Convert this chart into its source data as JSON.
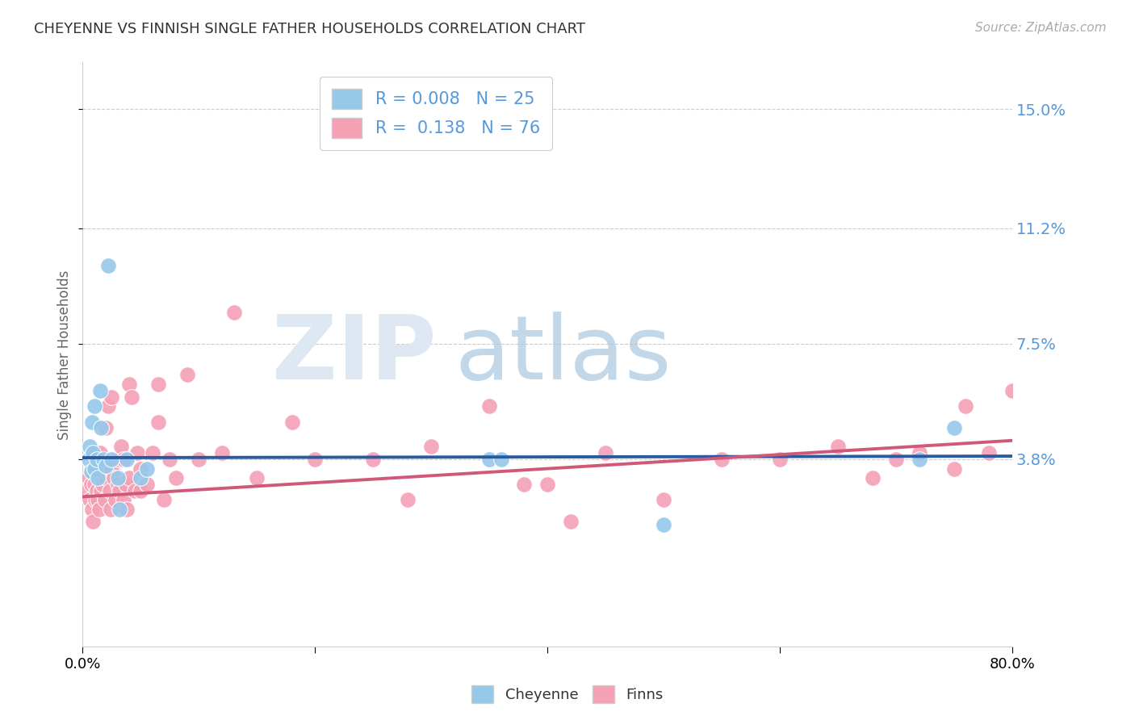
{
  "title": "CHEYENNE VS FINNISH SINGLE FATHER HOUSEHOLDS CORRELATION CHART",
  "source": "Source: ZipAtlas.com",
  "ylabel": "Single Father Households",
  "ytick_labels": [
    "3.8%",
    "7.5%",
    "11.2%",
    "15.0%"
  ],
  "ytick_values": [
    0.038,
    0.075,
    0.112,
    0.15
  ],
  "xlim": [
    0.0,
    0.8
  ],
  "ylim": [
    -0.022,
    0.165
  ],
  "cheyenne_color": "#96c8ea",
  "finns_color": "#f4a0b5",
  "cheyenne_line_color": "#2a5aa0",
  "finns_line_color": "#d05878",
  "cheyenne_x": [
    0.005,
    0.006,
    0.007,
    0.008,
    0.009,
    0.01,
    0.01,
    0.012,
    0.013,
    0.015,
    0.016,
    0.018,
    0.02,
    0.022,
    0.025,
    0.03,
    0.032,
    0.038,
    0.05,
    0.055,
    0.35,
    0.36,
    0.72,
    0.75,
    0.5
  ],
  "cheyenne_y": [
    0.038,
    0.042,
    0.034,
    0.05,
    0.04,
    0.035,
    0.055,
    0.038,
    0.032,
    0.06,
    0.048,
    0.038,
    0.036,
    0.1,
    0.038,
    0.032,
    0.022,
    0.038,
    0.032,
    0.035,
    0.038,
    0.038,
    0.038,
    0.048,
    0.017
  ],
  "finns_x": [
    0.004,
    0.005,
    0.006,
    0.007,
    0.008,
    0.009,
    0.01,
    0.01,
    0.011,
    0.012,
    0.012,
    0.013,
    0.014,
    0.015,
    0.015,
    0.016,
    0.017,
    0.018,
    0.019,
    0.02,
    0.02,
    0.022,
    0.023,
    0.024,
    0.025,
    0.025,
    0.027,
    0.028,
    0.03,
    0.03,
    0.032,
    0.033,
    0.035,
    0.035,
    0.037,
    0.038,
    0.04,
    0.04,
    0.042,
    0.045,
    0.047,
    0.05,
    0.05,
    0.055,
    0.06,
    0.065,
    0.065,
    0.07,
    0.075,
    0.08,
    0.09,
    0.1,
    0.12,
    0.13,
    0.15,
    0.18,
    0.2,
    0.25,
    0.28,
    0.3,
    0.35,
    0.4,
    0.45,
    0.5,
    0.55,
    0.6,
    0.65,
    0.68,
    0.7,
    0.72,
    0.75,
    0.76,
    0.78,
    0.8,
    0.38,
    0.42
  ],
  "finns_y": [
    0.028,
    0.032,
    0.025,
    0.03,
    0.022,
    0.018,
    0.035,
    0.03,
    0.025,
    0.028,
    0.038,
    0.025,
    0.022,
    0.04,
    0.032,
    0.028,
    0.03,
    0.035,
    0.025,
    0.032,
    0.048,
    0.055,
    0.028,
    0.022,
    0.035,
    0.058,
    0.032,
    0.025,
    0.038,
    0.03,
    0.028,
    0.042,
    0.025,
    0.038,
    0.03,
    0.022,
    0.032,
    0.062,
    0.058,
    0.028,
    0.04,
    0.035,
    0.028,
    0.03,
    0.04,
    0.062,
    0.05,
    0.025,
    0.038,
    0.032,
    0.065,
    0.038,
    0.04,
    0.085,
    0.032,
    0.05,
    0.038,
    0.038,
    0.025,
    0.042,
    0.055,
    0.03,
    0.04,
    0.025,
    0.038,
    0.038,
    0.042,
    0.032,
    0.038,
    0.04,
    0.035,
    0.055,
    0.04,
    0.06,
    0.03,
    0.018
  ],
  "cheyenne_tline_x": [
    0.0,
    0.8
  ],
  "cheyenne_tline_y": [
    0.0385,
    0.039
  ],
  "finns_tline_x": [
    0.0,
    0.8
  ],
  "finns_tline_y": [
    0.026,
    0.044
  ]
}
